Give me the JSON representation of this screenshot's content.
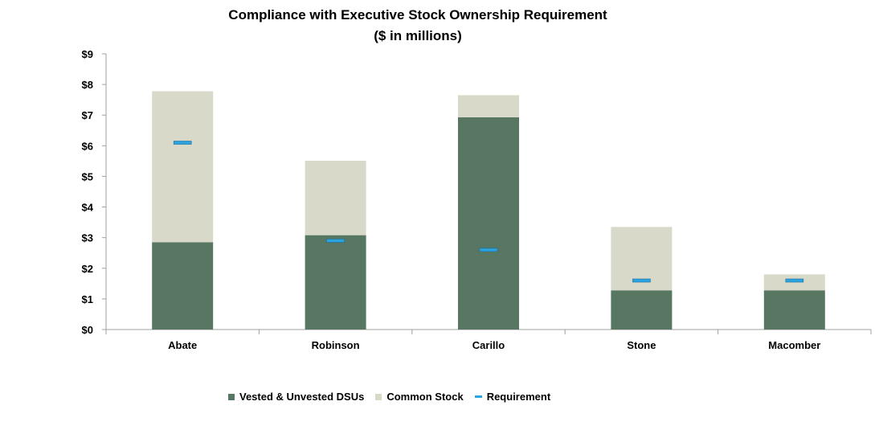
{
  "title": {
    "line1": "Compliance with Executive Stock Ownership Requirement",
    "line2": "($ in millions)"
  },
  "colors": {
    "vested": "#587762",
    "common": "#d9d9c9",
    "requirement": "#2aa3df",
    "requirement_border": "#1f6f9f",
    "axis": "#a0a0a0"
  },
  "chart_data": {
    "type": "bar",
    "stacked": true,
    "title": "Compliance with Executive Stock Ownership Requirement ($ in millions)",
    "xlabel": "",
    "ylabel": "",
    "ylim": [
      0,
      9
    ],
    "yticks": [
      0,
      1,
      2,
      3,
      4,
      5,
      6,
      7,
      8,
      9
    ],
    "ytick_labels": [
      "$0",
      "$1",
      "$2",
      "$3",
      "$4",
      "$5",
      "$6",
      "$7",
      "$8",
      "$9"
    ],
    "categories": [
      "Abate",
      "Robinson",
      "Carillo",
      "Stone",
      "Macomber"
    ],
    "series": [
      {
        "name": "Vested & Unvested DSUs",
        "kind": "bar",
        "values": [
          2.85,
          3.08,
          6.93,
          1.28,
          1.28
        ]
      },
      {
        "name": "Common Stock",
        "kind": "bar",
        "values": [
          4.93,
          2.43,
          0.72,
          2.07,
          0.52
        ]
      },
      {
        "name": "Requirement",
        "kind": "marker",
        "values": [
          6.1,
          2.9,
          2.6,
          1.6,
          1.6
        ]
      }
    ],
    "legend_position": "bottom"
  },
  "legend": {
    "items": [
      {
        "label": "Vested & Unvested DSUs"
      },
      {
        "label": "Common Stock"
      },
      {
        "label": "Requirement"
      }
    ]
  }
}
